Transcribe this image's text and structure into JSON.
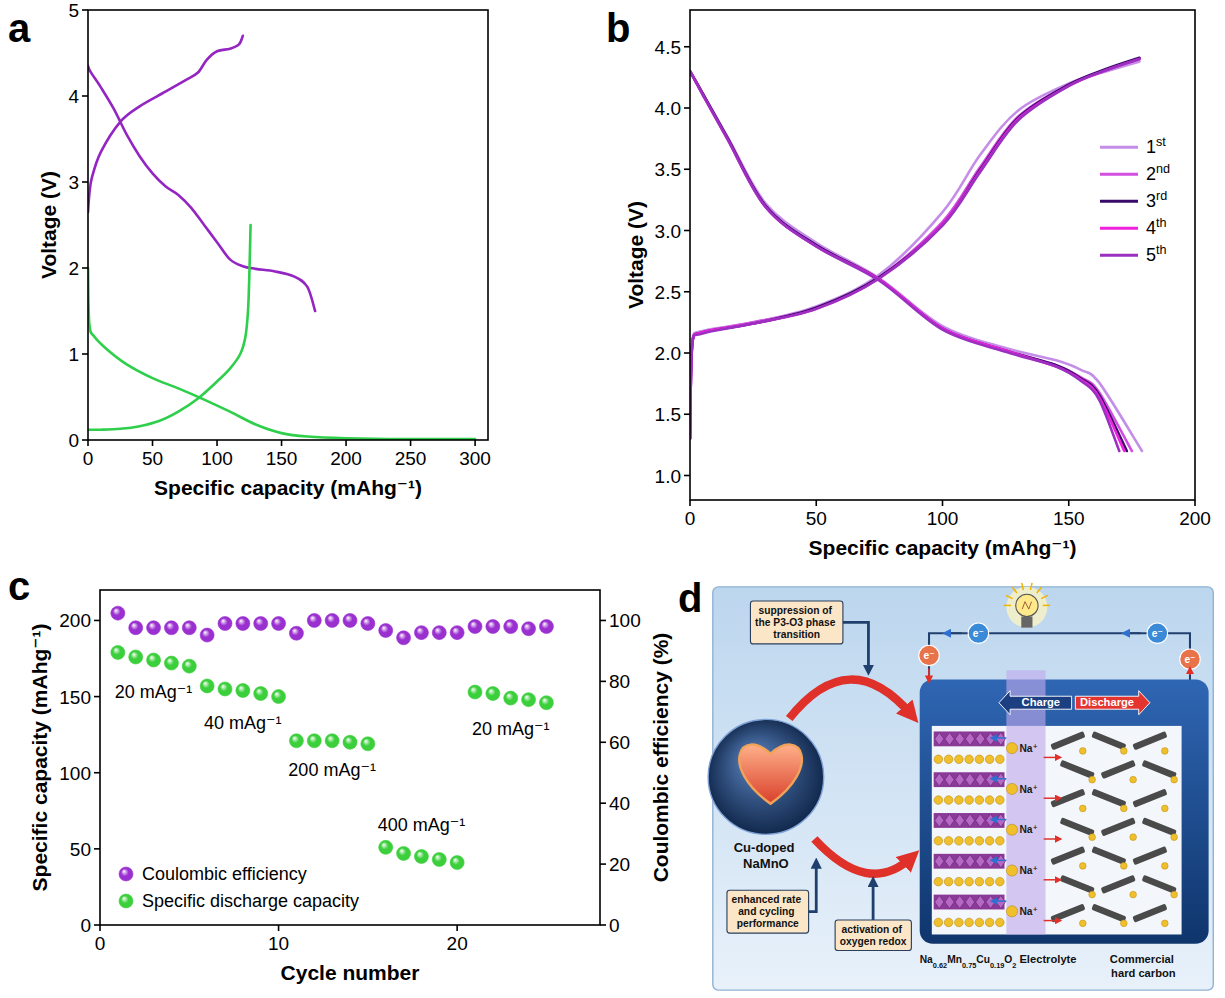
{
  "chart_data": [
    {
      "type": "line",
      "panel_label": "a",
      "x_label": "Specific capacity (mAhg⁻¹)",
      "y_label": "Voltage (V)",
      "xlim": [
        0,
        310
      ],
      "ylim": [
        0,
        5
      ],
      "xticks": [
        0,
        50,
        100,
        150,
        200,
        250,
        300
      ],
      "yticks": [
        0,
        1,
        2,
        3,
        4,
        5
      ],
      "series": [
        {
          "color": "#9425c2",
          "x": [
            0,
            1,
            3,
            10,
            25,
            40,
            60,
            75,
            85,
            92,
            100,
            110,
            117,
            120,
            null,
            0,
            2,
            10,
            20,
            30,
            40,
            50,
            60,
            70,
            80,
            90,
            100,
            110,
            120,
            130,
            145,
            160,
            170,
            176
          ],
          "values": [
            2.65,
            2.85,
            3.05,
            3.35,
            3.7,
            3.88,
            4.05,
            4.18,
            4.27,
            4.42,
            4.52,
            4.55,
            4.6,
            4.7,
            null,
            4.35,
            4.28,
            4.1,
            3.85,
            3.55,
            3.3,
            3.1,
            2.95,
            2.85,
            2.7,
            2.5,
            2.3,
            2.1,
            2.02,
            1.99,
            1.96,
            1.9,
            1.78,
            1.5
          ]
        },
        {
          "color": "#2ecf4a",
          "x": [
            0,
            1,
            5,
            15,
            30,
            50,
            70,
            90,
            110,
            130,
            150,
            170,
            200,
            250,
            300,
            null,
            0,
            10,
            25,
            40,
            55,
            70,
            85,
            100,
            110,
            118,
            122,
            124,
            125,
            126
          ],
          "values": [
            2.0,
            1.35,
            1.2,
            1.05,
            0.88,
            0.72,
            0.6,
            0.47,
            0.33,
            0.18,
            0.08,
            0.04,
            0.02,
            0.01,
            0.01,
            null,
            0.12,
            0.12,
            0.13,
            0.16,
            0.22,
            0.33,
            0.48,
            0.68,
            0.83,
            1.0,
            1.2,
            1.5,
            1.9,
            2.5
          ]
        }
      ]
    },
    {
      "type": "line",
      "panel_label": "b",
      "x_label": "Specific capacity (mAhg⁻¹)",
      "y_label": "Voltage (V)",
      "xlim": [
        0,
        200
      ],
      "ylim": [
        0.8,
        4.8
      ],
      "xticks": [
        0,
        50,
        100,
        150,
        200
      ],
      "yticks": [
        {
          "value": 1,
          "label": "1.0"
        },
        1.5,
        {
          "value": 2,
          "label": "2.0"
        },
        2.5,
        {
          "value": 3,
          "label": "3.0"
        },
        3.5,
        {
          "value": 4,
          "label": "4.0"
        },
        4.5
      ],
      "legend": "right",
      "series": [
        {
          "name": "1st",
          "color": "#c48ee8",
          "x": [
            0,
            1,
            5,
            25,
            50,
            75,
            100,
            115,
            130,
            150,
            165,
            178,
            null,
            0,
            5,
            15,
            30,
            50,
            75,
            100,
            125,
            145,
            155,
            162,
            179
          ],
          "values": [
            1.3,
            2.12,
            2.18,
            2.25,
            2.38,
            2.64,
            3.15,
            3.62,
            3.98,
            4.2,
            4.3,
            4.38,
            null,
            4.3,
            4.12,
            3.76,
            3.22,
            2.9,
            2.61,
            2.22,
            2.04,
            1.94,
            1.86,
            1.76,
            1.2
          ]
        },
        {
          "name": "2nd",
          "color": "#d24fe2",
          "x": [
            0,
            1,
            5,
            25,
            50,
            75,
            100,
            115,
            130,
            150,
            165,
            178,
            null,
            0,
            5,
            15,
            30,
            50,
            75,
            100,
            125,
            145,
            155,
            162,
            175
          ],
          "values": [
            1.3,
            2.1,
            2.17,
            2.25,
            2.37,
            2.62,
            3.07,
            3.52,
            3.93,
            4.19,
            4.31,
            4.4,
            null,
            4.3,
            4.12,
            3.75,
            3.2,
            2.88,
            2.6,
            2.2,
            2.02,
            1.9,
            1.8,
            1.68,
            1.2
          ]
        },
        {
          "name": "3rd",
          "color": "#3a0a6a",
          "x": [
            0,
            1,
            5,
            25,
            50,
            75,
            100,
            115,
            130,
            150,
            165,
            178,
            null,
            0,
            5,
            15,
            30,
            50,
            75,
            100,
            125,
            145,
            155,
            162,
            173
          ],
          "values": [
            1.3,
            2.1,
            2.17,
            2.24,
            2.37,
            2.62,
            3.05,
            3.5,
            3.92,
            4.19,
            4.32,
            4.41,
            null,
            4.3,
            4.12,
            3.75,
            3.2,
            2.88,
            2.6,
            2.2,
            2.02,
            1.9,
            1.79,
            1.66,
            1.2
          ]
        },
        {
          "name": "4th",
          "color": "#ee22dd",
          "x": [
            0,
            1,
            5,
            25,
            50,
            75,
            100,
            115,
            130,
            150,
            165,
            178,
            null,
            0,
            5,
            15,
            30,
            50,
            75,
            100,
            125,
            145,
            155,
            162,
            172
          ],
          "values": [
            1.3,
            2.1,
            2.17,
            2.24,
            2.36,
            2.61,
            3.05,
            3.49,
            3.91,
            4.18,
            4.31,
            4.4,
            null,
            4.3,
            4.11,
            3.74,
            3.19,
            2.87,
            2.6,
            2.2,
            2.02,
            1.89,
            1.78,
            1.64,
            1.2
          ]
        },
        {
          "name": "5th",
          "color": "#9b30c0",
          "x": [
            0,
            1,
            5,
            25,
            50,
            75,
            100,
            115,
            130,
            150,
            165,
            178,
            null,
            0,
            5,
            15,
            30,
            50,
            75,
            100,
            125,
            145,
            155,
            162,
            170
          ],
          "values": [
            1.3,
            2.1,
            2.16,
            2.24,
            2.36,
            2.61,
            3.04,
            3.48,
            3.9,
            4.18,
            4.31,
            4.4,
            null,
            4.3,
            4.11,
            3.74,
            3.19,
            2.87,
            2.59,
            2.19,
            2.01,
            1.89,
            1.77,
            1.62,
            1.2
          ]
        }
      ]
    },
    {
      "type": "scatter",
      "panel_label": "c",
      "x_label": "Cycle number",
      "y_label": "Specific capacity (mAhg⁻¹)",
      "y2_label": "Coulombic efficiency (%)",
      "xlim": [
        0,
        28
      ],
      "ylim": [
        0,
        220
      ],
      "y2lim": [
        0,
        110
      ],
      "xticks": [
        0,
        10,
        20
      ],
      "yticks": [
        0,
        50,
        100,
        150,
        200
      ],
      "y2ticks": [
        0,
        20,
        40,
        60,
        80,
        100
      ],
      "marker": "circle",
      "legend": "lower left",
      "annotations": [
        "20 mAg⁻¹",
        "40 mAg⁻¹",
        "200 mAg⁻¹",
        "400 mAg⁻¹",
        "20 mAg⁻¹"
      ],
      "x": [
        1,
        2,
        3,
        4,
        5,
        6,
        7,
        8,
        9,
        10,
        11,
        12,
        13,
        14,
        15,
        16,
        17,
        18,
        19,
        20,
        21,
        22,
        23,
        24,
        25
      ],
      "series": [
        {
          "name": "Coulombic efficiency",
          "color": "#9b30d0",
          "axis": "y2",
          "values": [
            102.4,
            97.6,
            97.6,
            97.6,
            97.6,
            95.2,
            99,
            99,
            99,
            99,
            95.8,
            100,
            100,
            100,
            99,
            96.7,
            94.3,
            96,
            96,
            96,
            98,
            98,
            98,
            97.3,
            98
          ]
        },
        {
          "name": "Specific discharge capacity",
          "color": "#3ccf3c",
          "values": [
            179,
            176,
            174,
            172,
            170,
            157,
            155,
            154,
            152,
            150,
            121,
            121,
            121,
            120,
            119,
            51,
            47,
            45,
            43,
            41,
            153,
            152,
            149,
            148,
            146
          ]
        }
      ]
    }
  ],
  "diagram": {
    "panel_label": "d",
    "labels": {
      "suppression": "suppression of the P3-O3 phase transition",
      "enhanced": "enhanced rate and cycling performance",
      "activation": "activation of oxygen redox",
      "material": "Cu-doped NaMnO",
      "charge": "Charge",
      "discharge": "Discharge",
      "cathode": "Na0.62Mn0.75Cu0.19O2",
      "electrolyte": "Electrolyte",
      "anode": "Commercial hard carbon",
      "ion": "Na⁺",
      "electron": "e⁻"
    }
  }
}
